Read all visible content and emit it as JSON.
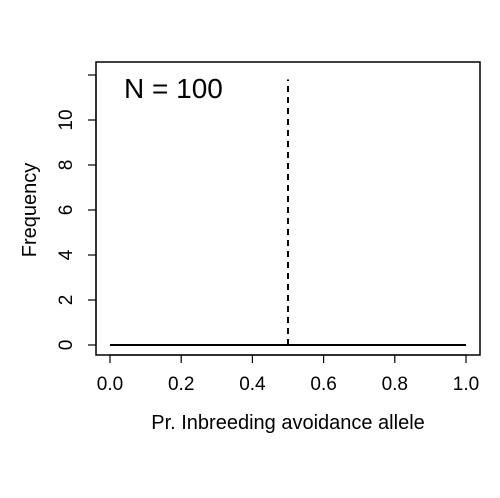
{
  "chart_data": {
    "type": "line",
    "title": "",
    "xlabel": "Pr. Inbreeding avoidance allele",
    "ylabel": "Frequency",
    "xlim": [
      0.0,
      1.0
    ],
    "ylim": [
      0,
      12
    ],
    "x_ticks": [
      0.0,
      0.2,
      0.4,
      0.6,
      0.8,
      1.0
    ],
    "x_tick_labels": [
      "0.0",
      "0.2",
      "0.4",
      "0.6",
      "0.8",
      "1.0"
    ],
    "y_ticks": [
      0,
      2,
      4,
      6,
      8,
      10,
      12
    ],
    "y_tick_labels": [
      "0",
      "2",
      "4",
      "6",
      "8",
      "10",
      ""
    ],
    "series": [
      {
        "x": [
          0.0,
          1.0
        ],
        "y": [
          0,
          0
        ],
        "color": "#000000",
        "style": "solid"
      }
    ],
    "reference_line": {
      "x": 0.5,
      "y_range": [
        0,
        11.8
      ],
      "style": "dashed",
      "color": "#000000"
    },
    "annotation": "N = 100",
    "grid": false,
    "legend": "none"
  }
}
